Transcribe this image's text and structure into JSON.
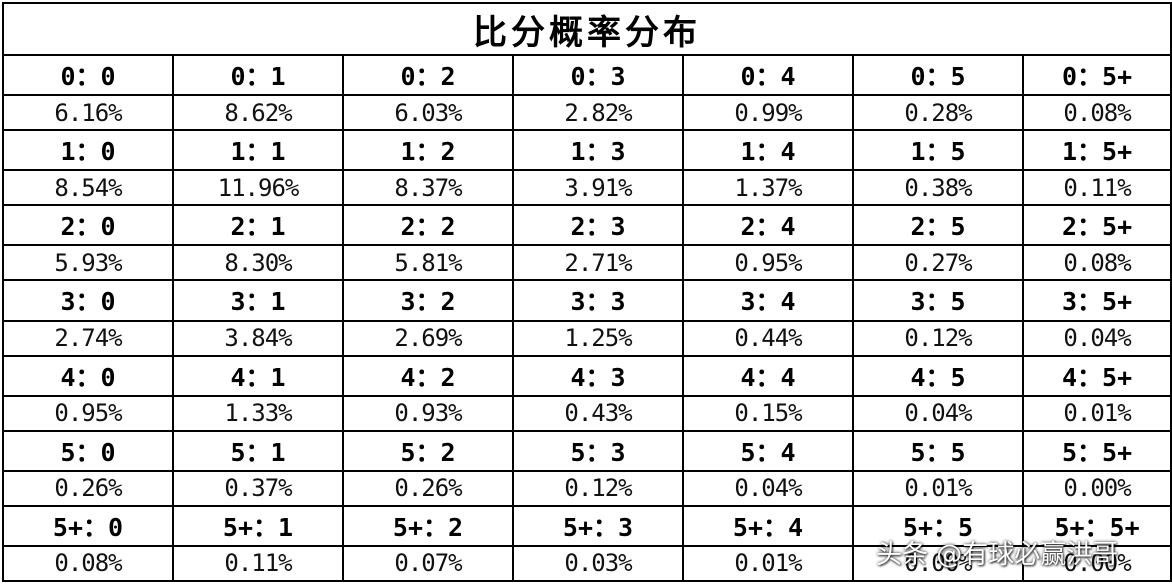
{
  "title": "比分概率分布",
  "rows": [
    {
      "scores": [
        "0：0",
        "0：1",
        "0：2",
        "0：3",
        "0：4",
        "0：5",
        "0：5+"
      ],
      "probs": [
        "6.16%",
        "8.62%",
        "6.03%",
        "2.82%",
        "0.99%",
        "0.28%",
        "0.08%"
      ]
    },
    {
      "scores": [
        "1：0",
        "1：1",
        "1：2",
        "1：3",
        "1：4",
        "1：5",
        "1：5+"
      ],
      "probs": [
        "8.54%",
        "11.96%",
        "8.37%",
        "3.91%",
        "1.37%",
        "0.38%",
        "0.11%"
      ]
    },
    {
      "scores": [
        "2：0",
        "2：1",
        "2：2",
        "2：3",
        "2：4",
        "2：5",
        "2：5+"
      ],
      "probs": [
        "5.93%",
        "8.30%",
        "5.81%",
        "2.71%",
        "0.95%",
        "0.27%",
        "0.08%"
      ]
    },
    {
      "scores": [
        "3：0",
        "3：1",
        "3：2",
        "3：3",
        "3：4",
        "3：5",
        "3：5+"
      ],
      "probs": [
        "2.74%",
        "3.84%",
        "2.69%",
        "1.25%",
        "0.44%",
        "0.12%",
        "0.04%"
      ]
    },
    {
      "scores": [
        "4：0",
        "4：1",
        "4：2",
        "4：3",
        "4：4",
        "4：5",
        "4：5+"
      ],
      "probs": [
        "0.95%",
        "1.33%",
        "0.93%",
        "0.43%",
        "0.15%",
        "0.04%",
        "0.01%"
      ]
    },
    {
      "scores": [
        "5：0",
        "5：1",
        "5：2",
        "5：3",
        "5：4",
        "5：5",
        "5：5+"
      ],
      "probs": [
        "0.26%",
        "0.37%",
        "0.26%",
        "0.12%",
        "0.04%",
        "0.01%",
        "0.00%"
      ]
    },
    {
      "scores": [
        "5+：0",
        "5+：1",
        "5+：2",
        "5+：3",
        "5+：4",
        "5+：5",
        "5+：5+"
      ],
      "probs": [
        "0.08%",
        "0.11%",
        "0.07%",
        "0.03%",
        "0.01%",
        "0.00%",
        "0.00%"
      ]
    }
  ],
  "watermark": "头条 @有球必赢洪哥"
}
